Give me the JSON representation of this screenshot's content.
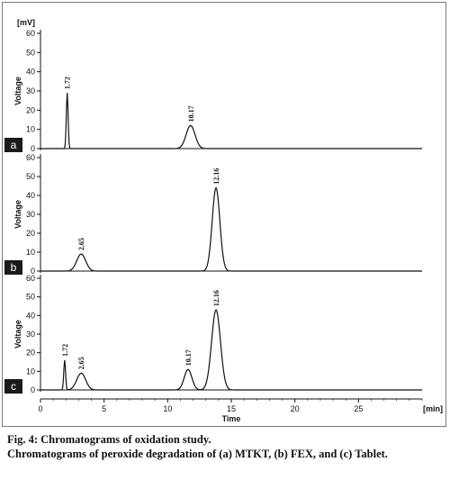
{
  "caption": {
    "title": "Fig. 4: Chromatograms of oxidation study.",
    "body": "Chromatograms of peroxide degradation of (a) MTKT, (b) FEX, and (c) Tablet."
  },
  "chart_data": [
    {
      "type": "line",
      "panel": "a",
      "ylabel": "Voltage",
      "yunit": "[mV]",
      "ylim": [
        0,
        60
      ],
      "yticks": [
        0,
        10,
        20,
        30,
        40,
        50,
        60
      ],
      "xlim": [
        0,
        30
      ],
      "peaks": [
        {
          "label": "1.72",
          "x": 2.1,
          "height": 29,
          "width": 0.07
        },
        {
          "label": "10.17",
          "x": 11.8,
          "height": 12,
          "width": 0.35
        }
      ]
    },
    {
      "type": "line",
      "panel": "b",
      "ylabel": "Voltage",
      "ylim": [
        0,
        60
      ],
      "yticks": [
        0,
        10,
        20,
        30,
        40,
        50,
        60
      ],
      "xlim": [
        0,
        30
      ],
      "peaks": [
        {
          "label": "2.65",
          "x": 3.2,
          "height": 9,
          "width": 0.35
        },
        {
          "label": "12.16",
          "x": 13.8,
          "height": 44,
          "width": 0.3
        }
      ]
    },
    {
      "type": "line",
      "panel": "c",
      "ylabel": "Voltage",
      "xlabel": "Time",
      "xunit": "[min]",
      "ylim": [
        0,
        60
      ],
      "yticks": [
        0,
        10,
        20,
        30,
        40,
        50,
        60
      ],
      "xlim": [
        0,
        30
      ],
      "xticks": [
        0,
        5,
        10,
        15,
        20,
        25
      ],
      "peaks": [
        {
          "label": "1.72",
          "x": 1.9,
          "height": 16,
          "width": 0.07
        },
        {
          "label": "2.65",
          "x": 3.2,
          "height": 9,
          "width": 0.35
        },
        {
          "label": "10.17",
          "x": 11.6,
          "height": 11,
          "width": 0.3
        },
        {
          "label": "12.16",
          "x": 13.8,
          "height": 43,
          "width": 0.35
        }
      ]
    }
  ]
}
